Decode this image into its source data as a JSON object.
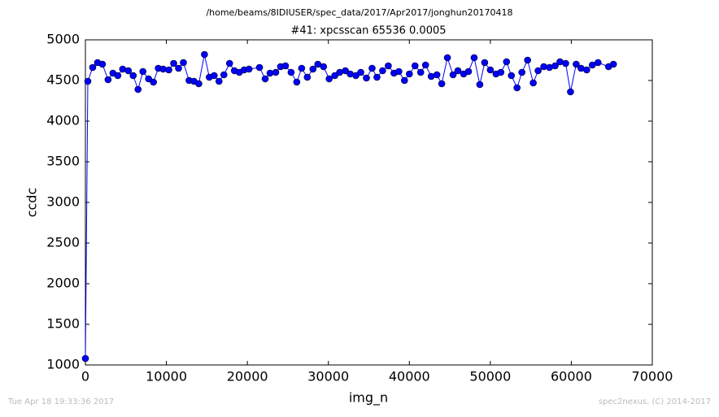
{
  "chart_data": {
    "type": "line",
    "path_title": "/home/beams/8IDIUSER/spec_data/2017/Apr2017/jonghun20170418",
    "title": "#41: xpcsscan 65536 0.0005",
    "x_label": "img_n",
    "y_label": "ccdc",
    "footer_left": "Tue Apr 18 19:33:36 2017",
    "footer_right": "spec2nexus, (C) 2014-2017",
    "xlim": [
      0,
      70000
    ],
    "xticks": [
      0,
      10000,
      20000,
      30000,
      40000,
      50000,
      60000,
      70000
    ],
    "ylim": [
      1000,
      5000
    ],
    "yticks": [
      1000,
      1500,
      2000,
      2500,
      3000,
      3500,
      4000,
      4500,
      5000
    ],
    "series": [
      {
        "color": "#0000ff",
        "x": [
          0,
          300,
          900,
          1500,
          2100,
          2800,
          3400,
          4000,
          4600,
          5300,
          5900,
          6500,
          7100,
          7800,
          8400,
          9000,
          9600,
          10300,
          10900,
          11500,
          12100,
          12800,
          13400,
          14000,
          14700,
          15300,
          15900,
          16500,
          17100,
          17800,
          18400,
          19000,
          19600,
          20200,
          21500,
          22200,
          22800,
          23500,
          24100,
          24700,
          25400,
          26100,
          26700,
          27400,
          28100,
          28700,
          29400,
          30100,
          30800,
          31400,
          32100,
          32700,
          33400,
          34000,
          34700,
          35400,
          36000,
          36700,
          37400,
          38100,
          38700,
          39400,
          40000,
          40700,
          41400,
          42000,
          42700,
          43400,
          44000,
          44700,
          45400,
          46000,
          46700,
          47300,
          48000,
          48700,
          49300,
          50000,
          50700,
          51300,
          52000,
          52600,
          53300,
          53900,
          54600,
          55300,
          55900,
          56600,
          57300,
          58000,
          58600,
          59300,
          59900,
          60600,
          61200,
          61900,
          62600,
          63300,
          64600,
          65200
        ],
        "values": [
          1080,
          4490,
          4660,
          4720,
          4700,
          4510,
          4590,
          4560,
          4640,
          4620,
          4560,
          4390,
          4610,
          4520,
          4480,
          4650,
          4640,
          4630,
          4710,
          4650,
          4720,
          4500,
          4490,
          4460,
          4820,
          4540,
          4560,
          4490,
          4570,
          4710,
          4620,
          4600,
          4630,
          4640,
          4660,
          4520,
          4590,
          4600,
          4670,
          4680,
          4600,
          4480,
          4650,
          4540,
          4640,
          4700,
          4670,
          4520,
          4560,
          4600,
          4620,
          4580,
          4560,
          4600,
          4530,
          4650,
          4540,
          4620,
          4680,
          4590,
          4610,
          4500,
          4580,
          4680,
          4600,
          4690,
          4550,
          4570,
          4460,
          4780,
          4570,
          4620,
          4580,
          4610,
          4780,
          4450,
          4720,
          4630,
          4580,
          4600,
          4730,
          4560,
          4410,
          4600,
          4750,
          4470,
          4620,
          4670,
          4660,
          4680,
          4730,
          4710,
          4360,
          4700,
          4650,
          4630,
          4690,
          4720,
          4670,
          4700
        ]
      }
    ]
  }
}
